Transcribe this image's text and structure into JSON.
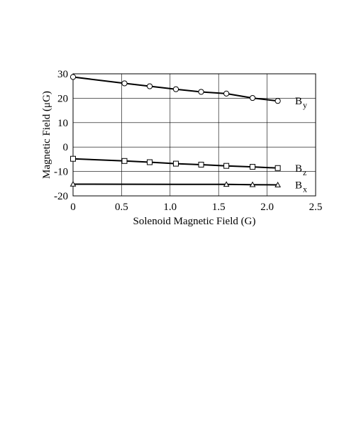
{
  "chart_data": {
    "type": "line",
    "title": "",
    "xlabel": "Solenoid Magnetic Field (G)",
    "ylabel": "Magnetic Field (μG)",
    "xlim": [
      0,
      2.5
    ],
    "ylim": [
      -20,
      30
    ],
    "xticks": [
      0,
      0.5,
      1.0,
      1.5,
      2.0,
      2.5
    ],
    "xtick_labels": [
      "0",
      "0.5",
      "1.0",
      "1.5",
      "2.0",
      "2.5"
    ],
    "yticks": [
      -20,
      -10,
      0,
      10,
      20,
      30
    ],
    "ytick_labels": [
      "-20",
      "-10",
      "0",
      "10",
      "20",
      "30"
    ],
    "grid": true,
    "legend": "inline-right",
    "series": [
      {
        "name": "By",
        "label_main": "B",
        "label_sub": "y",
        "marker": "circle",
        "points": [
          [
            0,
            28.7
          ],
          [
            0.53,
            26.1
          ],
          [
            0.79,
            24.9
          ],
          [
            1.06,
            23.7
          ],
          [
            1.32,
            22.6
          ],
          [
            1.58,
            21.9
          ],
          [
            1.85,
            20.1
          ],
          [
            2.11,
            18.9
          ]
        ]
      },
      {
        "name": "Bz",
        "label_main": "B",
        "label_sub": "z",
        "marker": "square",
        "points": [
          [
            0,
            -4.8
          ],
          [
            0.53,
            -5.7
          ],
          [
            0.79,
            -6.2
          ],
          [
            1.06,
            -6.8
          ],
          [
            1.32,
            -7.2
          ],
          [
            1.58,
            -7.7
          ],
          [
            1.85,
            -8.1
          ],
          [
            2.11,
            -8.6
          ]
        ]
      },
      {
        "name": "Bx",
        "label_main": "B",
        "label_sub": "x",
        "marker": "triangle",
        "points": [
          [
            0,
            -15.2
          ],
          [
            1.58,
            -15.3
          ],
          [
            1.85,
            -15.4
          ],
          [
            2.11,
            -15.5
          ]
        ]
      }
    ]
  }
}
